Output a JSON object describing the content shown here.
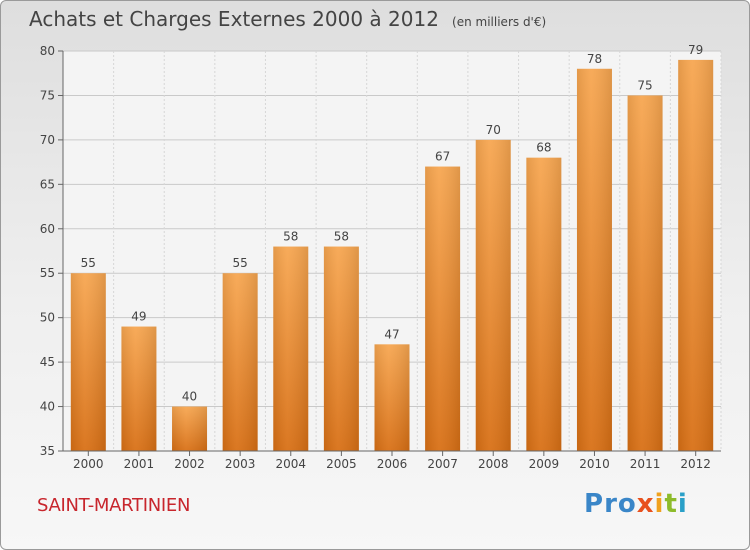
{
  "title": "Achats et Charges Externes 2000 à 2012",
  "subtitle": "(en milliers d'€)",
  "place": "SAINT-MARTINIEN",
  "logo": {
    "letters": [
      {
        "char": "P",
        "color": "#3a86c8"
      },
      {
        "char": "r",
        "color": "#3a86c8"
      },
      {
        "char": "o",
        "color": "#3a86c8"
      },
      {
        "char": "x",
        "color": "#e8511e"
      },
      {
        "char": "i",
        "color": "#f0a11e"
      },
      {
        "char": "t",
        "color": "#8dbb2a"
      },
      {
        "char": "i",
        "color": "#2aa0c8"
      }
    ]
  },
  "chart_data": {
    "type": "bar",
    "categories": [
      "2000",
      "2001",
      "2002",
      "2003",
      "2004",
      "2005",
      "2006",
      "2007",
      "2008",
      "2009",
      "2010",
      "2011",
      "2012"
    ],
    "values": [
      55,
      49,
      40,
      55,
      58,
      58,
      47,
      67,
      70,
      68,
      78,
      75,
      79
    ],
    "ylim": [
      35,
      80
    ],
    "yticks": [
      35,
      40,
      45,
      50,
      55,
      60,
      65,
      70,
      75,
      80
    ],
    "grid": true,
    "bar_color": "#f08c32"
  }
}
